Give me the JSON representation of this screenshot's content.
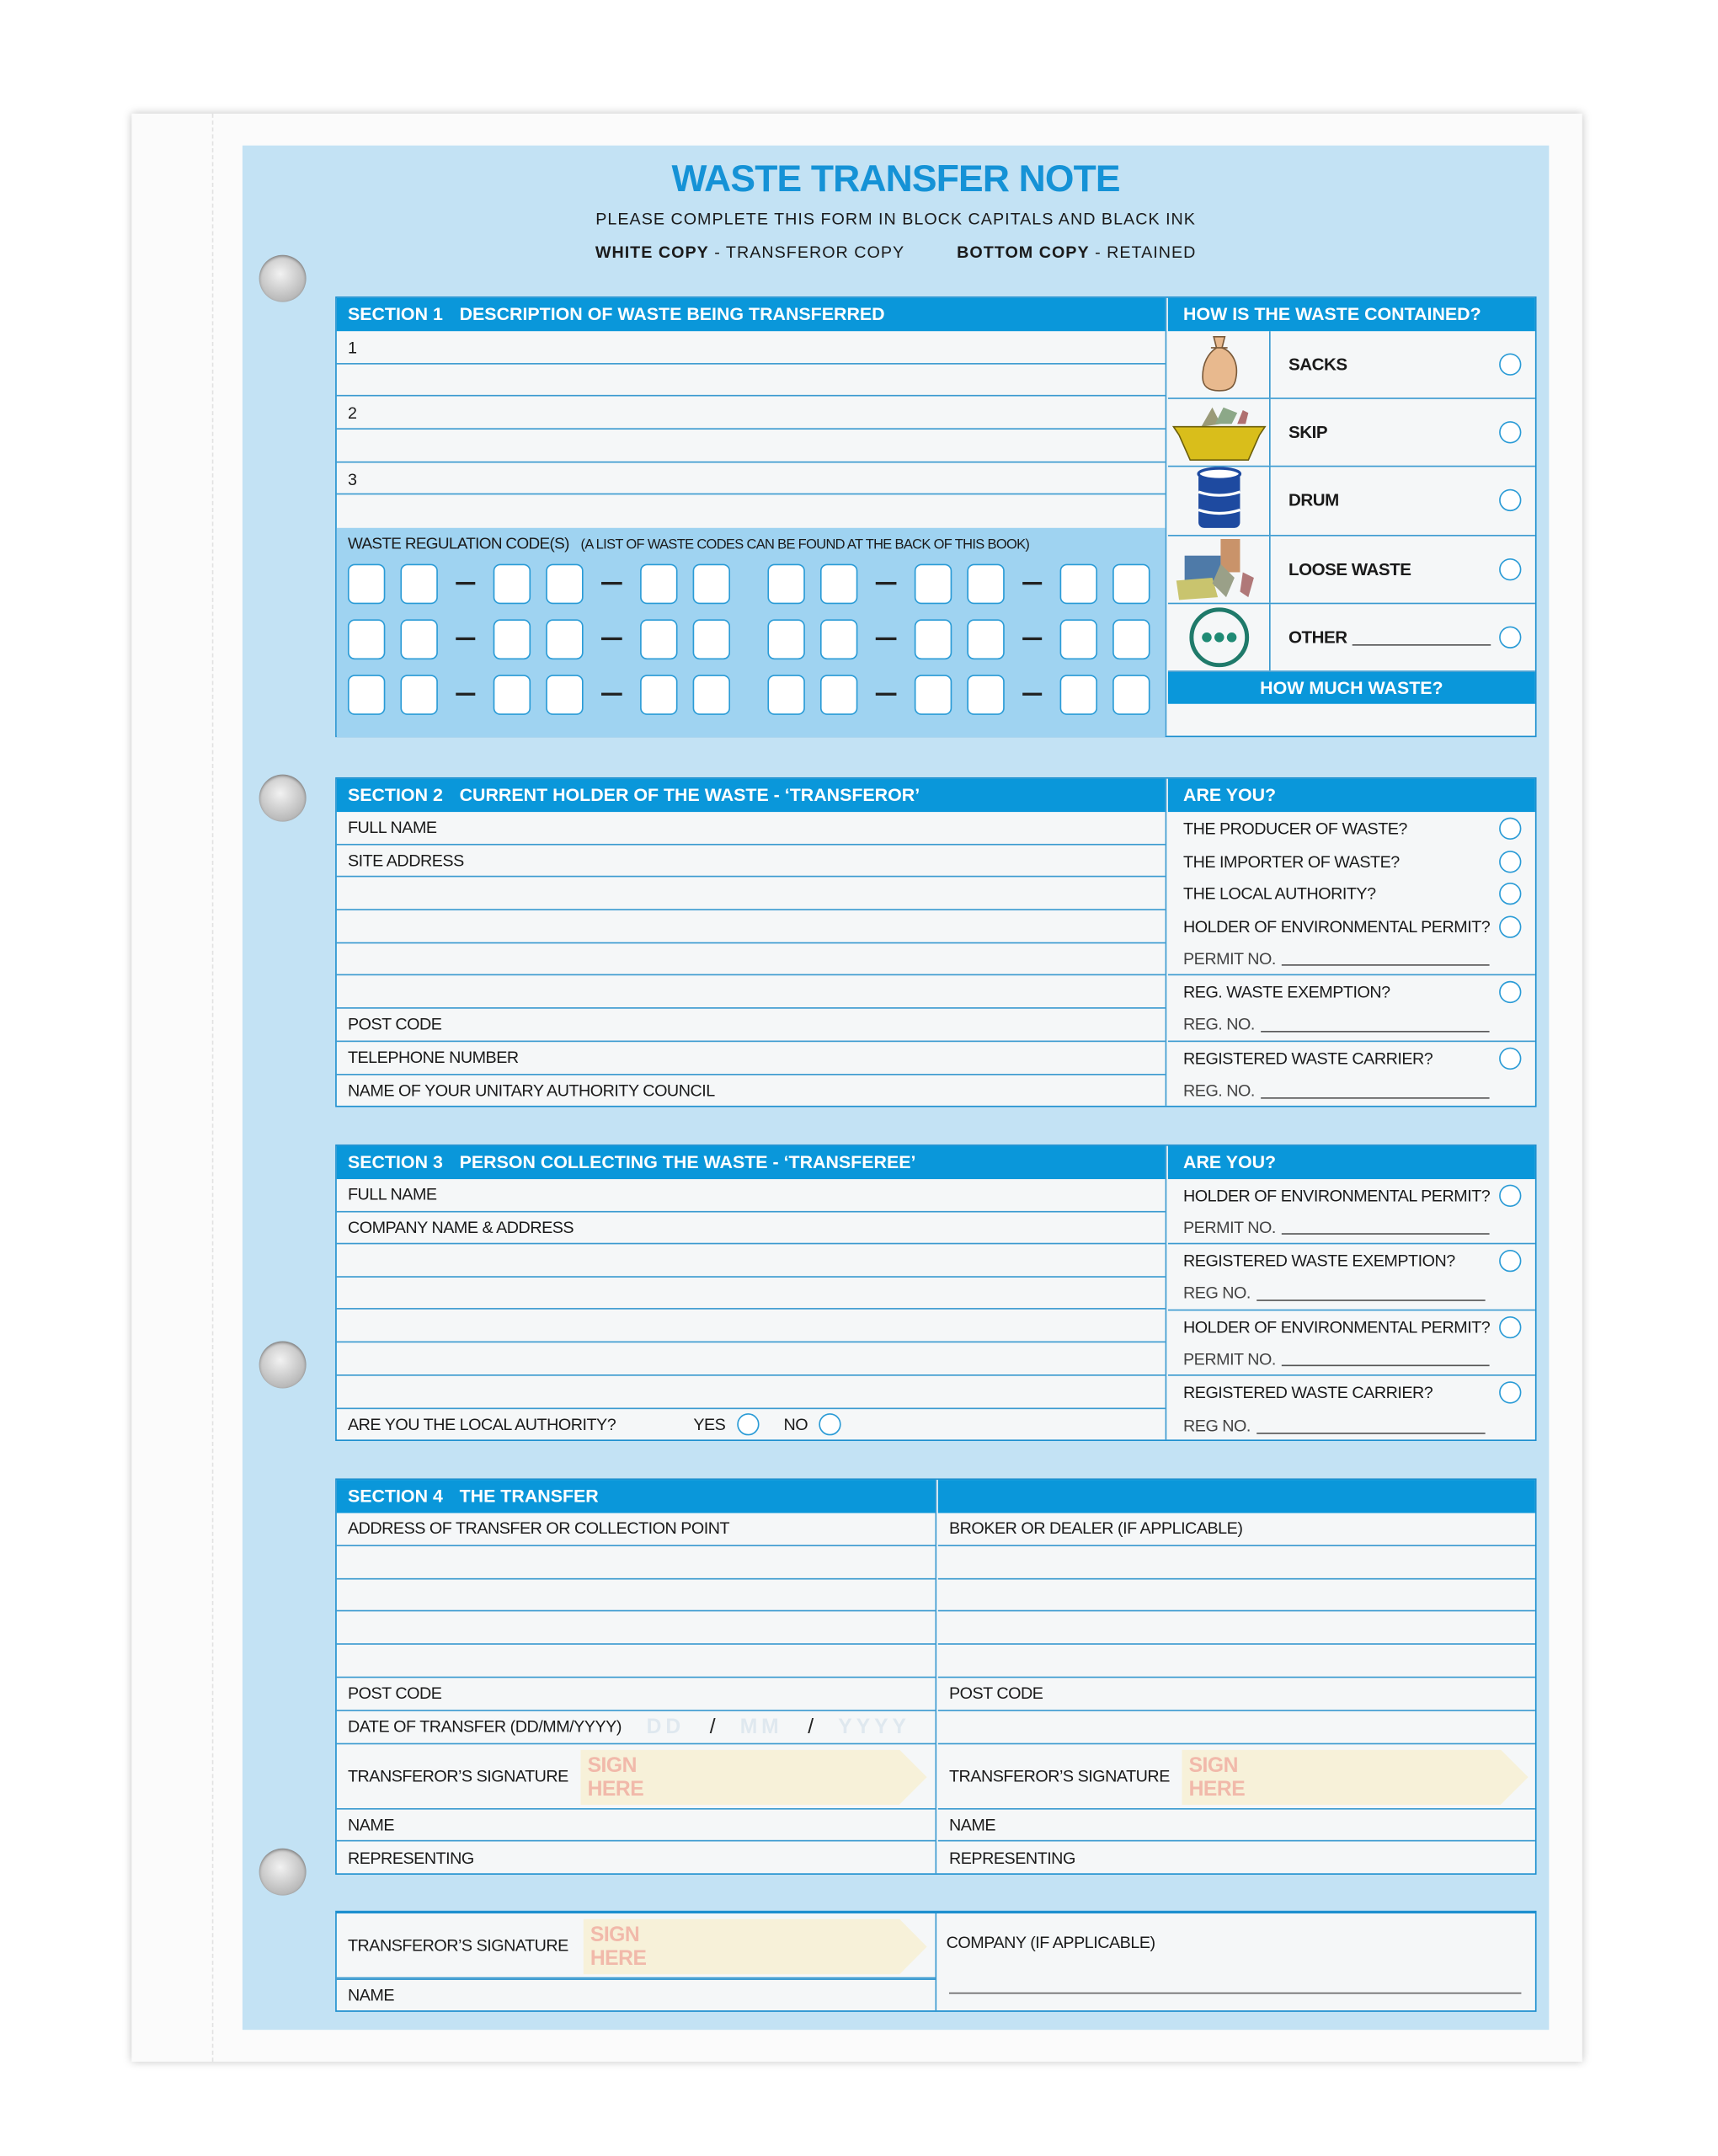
{
  "header": {
    "title": "WASTE TRANSFER NOTE",
    "instruction": "PLEASE COMPLETE THIS FORM IN BLOCK CAPITALS AND BLACK INK",
    "white_copy_label": "WHITE COPY",
    "white_copy_text": " - TRANSFEROR COPY",
    "bottom_copy_label": "BOTTOM COPY",
    "bottom_copy_text": " - RETAINED"
  },
  "section1": {
    "number": "SECTION 1",
    "heading": "DESCRIPTION OF WASTE BEING TRANSFERRED",
    "lines": [
      "1",
      "",
      "2",
      "",
      "3",
      ""
    ],
    "codes_label": "WASTE REGULATION CODE(S)",
    "codes_note": "(A LIST OF WASTE CODES CAN BE FOUND AT THE BACK OF THIS BOOK)",
    "contained_heading": "HOW IS THE WASTE CONTAINED?",
    "containers": [
      {
        "label": "SACKS",
        "icon": "sack-icon"
      },
      {
        "label": "SKIP",
        "icon": "skip-icon"
      },
      {
        "label": "DRUM",
        "icon": "drum-icon"
      },
      {
        "label": "LOOSE WASTE",
        "icon": "loose-waste-icon"
      },
      {
        "label": "OTHER",
        "icon": "more-dots-icon"
      }
    ],
    "how_much_heading": "HOW MUCH WASTE?"
  },
  "section2": {
    "number": "SECTION 2",
    "heading": "CURRENT HOLDER OF THE WASTE - ‘TRANSFEROR’",
    "left_rows": [
      "FULL NAME",
      "SITE ADDRESS",
      "",
      "",
      "",
      "",
      "POST CODE",
      "TELEPHONE NUMBER",
      "NAME OF YOUR UNITARY AUTHORITY COUNCIL"
    ],
    "right_heading": "ARE YOU?",
    "right_rows": [
      {
        "label": "THE PRODUCER OF WASTE?",
        "type": "radio"
      },
      {
        "label": "THE IMPORTER OF WASTE?",
        "type": "radio"
      },
      {
        "label": "THE LOCAL AUTHORITY?",
        "type": "radio"
      },
      {
        "label": "HOLDER OF ENVIRONMENTAL PERMIT?",
        "type": "radio"
      },
      {
        "label": "PERMIT NO.",
        "type": "line"
      },
      {
        "label": "REG. WASTE EXEMPTION?",
        "type": "radio"
      },
      {
        "label": "REG. NO.",
        "type": "line"
      },
      {
        "label": "REGISTERED WASTE CARRIER?",
        "type": "radio"
      },
      {
        "label": "REG. NO.",
        "type": "line"
      }
    ]
  },
  "section3": {
    "number": "SECTION 3",
    "heading": "PERSON COLLECTING THE WASTE - ‘TRANSFEREE’",
    "left_rows": [
      "FULL NAME",
      "COMPANY NAME & ADDRESS",
      "",
      "",
      "",
      "",
      ""
    ],
    "local_authority_question": "ARE YOU THE LOCAL AUTHORITY?",
    "yes_label": "YES",
    "no_label": "NO",
    "right_heading": "ARE YOU?",
    "right_rows": [
      {
        "label": "HOLDER OF ENVIRONMENTAL PERMIT?",
        "type": "radio"
      },
      {
        "label": "PERMIT NO.",
        "type": "line"
      },
      {
        "label": "REGISTERED WASTE EXEMPTION?",
        "type": "radio"
      },
      {
        "label": "REG NO.",
        "type": "line"
      },
      {
        "label": "HOLDER OF ENVIRONMENTAL PERMIT?",
        "type": "radio"
      },
      {
        "label": "PERMIT NO.",
        "type": "line"
      },
      {
        "label": "REGISTERED WASTE CARRIER?",
        "type": "radio"
      },
      {
        "label": "REG NO.",
        "type": "line"
      }
    ]
  },
  "section4": {
    "number": "SECTION 4",
    "heading": "THE TRANSFER",
    "left_rows": [
      {
        "label": "ADDRESS OF TRANSFER OR COLLECTION POINT"
      },
      {
        "label": ""
      },
      {
        "label": ""
      },
      {
        "label": ""
      },
      {
        "label": ""
      },
      {
        "label": "POST CODE"
      },
      {
        "label": "DATE OF TRANSFER (DD/MM/YYYY)",
        "type": "date"
      },
      {
        "label": "TRANSFEROR’S SIGNATURE",
        "type": "sig"
      },
      {
        "label": "NAME"
      },
      {
        "label": "REPRESENTING"
      }
    ],
    "right_rows": [
      {
        "label": "BROKER OR DEALER (IF APPLICABLE)"
      },
      {
        "label": ""
      },
      {
        "label": ""
      },
      {
        "label": ""
      },
      {
        "label": ""
      },
      {
        "label": "POST CODE"
      },
      {
        "label": ""
      },
      {
        "label": "TRANSFEROR’S SIGNATURE",
        "type": "sig"
      },
      {
        "label": "NAME"
      },
      {
        "label": "REPRESENTING"
      }
    ],
    "date_placeholder": {
      "dd": "DD",
      "mm": "MM",
      "yyyy": "YYYY",
      "sep": "/"
    },
    "sign_here": {
      "line1": "SIGN",
      "line2": "HERE"
    }
  },
  "footer_box": {
    "signature_label": "TRANSFEROR’S SIGNATURE",
    "name_label": "NAME",
    "company_label": "COMPANY (IF APPLICABLE)"
  },
  "colors": {
    "header_blue": "#0a97da",
    "panel": "#c3e2f4",
    "codes_area": "#9fd3f1",
    "title": "#1592d6",
    "sign_here_fill": "#f7f1d9",
    "sign_here_text": "#f1b9aa"
  }
}
